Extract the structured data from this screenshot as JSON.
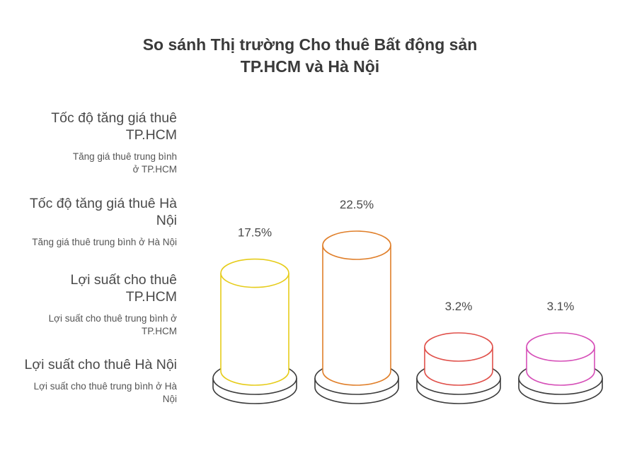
{
  "chart_data": {
    "type": "bar",
    "title": "So sánh Thị trường Cho thuê Bất động sản",
    "subtitle": "TP.HCM và Hà Nội",
    "categories": [
      "Tốc độ tăng giá thuê TP.HCM",
      "Tốc độ tăng giá thuê Hà Nội",
      "Lợi suất cho thuê TP.HCM",
      "Lợi suất cho thuê Hà Nội"
    ],
    "values": [
      17.5,
      22.5,
      3.2,
      3.1
    ],
    "value_labels": [
      "17.5%",
      "22.5%",
      "3.2%",
      "3.1%"
    ],
    "descriptions": [
      "Tăng giá thuê trung bình ở TP.HCM",
      "Tăng giá thuê trung bình ở Hà Nội",
      "Lợi suất cho thuê trung bình ở TP.HCM",
      "Lợi suất cho thuê trung bình ở Hà Nội"
    ],
    "colors": [
      "#e6cc1a",
      "#e07f2a",
      "#e0504a",
      "#d64fb8"
    ],
    "legend_position": "left"
  }
}
